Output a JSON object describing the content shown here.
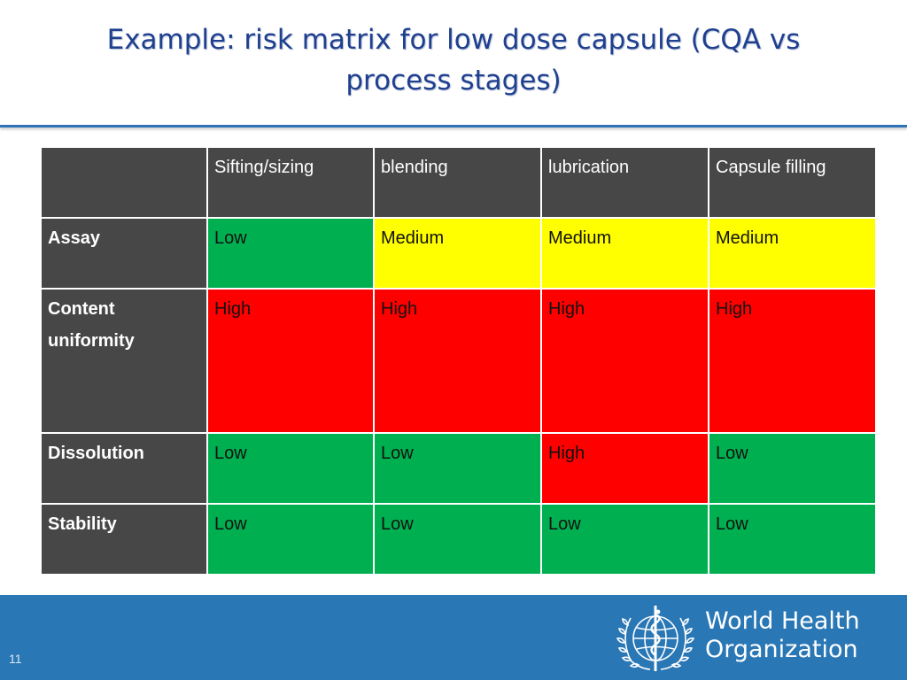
{
  "slide": {
    "title_line1": "Example: risk matrix for low dose capsule (CQA vs",
    "title_line2": "process stages)",
    "slide_number": "11"
  },
  "table": {
    "corner": "",
    "columns": [
      "Sifting/sizing",
      "blending",
      "lubrication",
      "Capsule filling"
    ],
    "rows": [
      {
        "label": "Assay",
        "cells": [
          "Low",
          "Medium",
          "Medium",
          "Medium"
        ]
      },
      {
        "label": "Content uniformity",
        "cells": [
          "High",
          "High",
          "High",
          "High"
        ]
      },
      {
        "label": "Dissolution",
        "cells": [
          "Low",
          "Low",
          "High",
          "Low"
        ]
      },
      {
        "label": "Stability",
        "cells": [
          "Low",
          "Low",
          "Low",
          "Low"
        ]
      }
    ]
  },
  "colors": {
    "low": "#00b050",
    "medium": "#ffff00",
    "high": "#ff0000",
    "header_bg": "#474747",
    "footer_bg": "#2a77b5",
    "title": "#1f3f8f"
  },
  "footer": {
    "org_line1": "World Health",
    "org_line2": "Organization",
    "logo_icon": "who-emblem-icon"
  }
}
